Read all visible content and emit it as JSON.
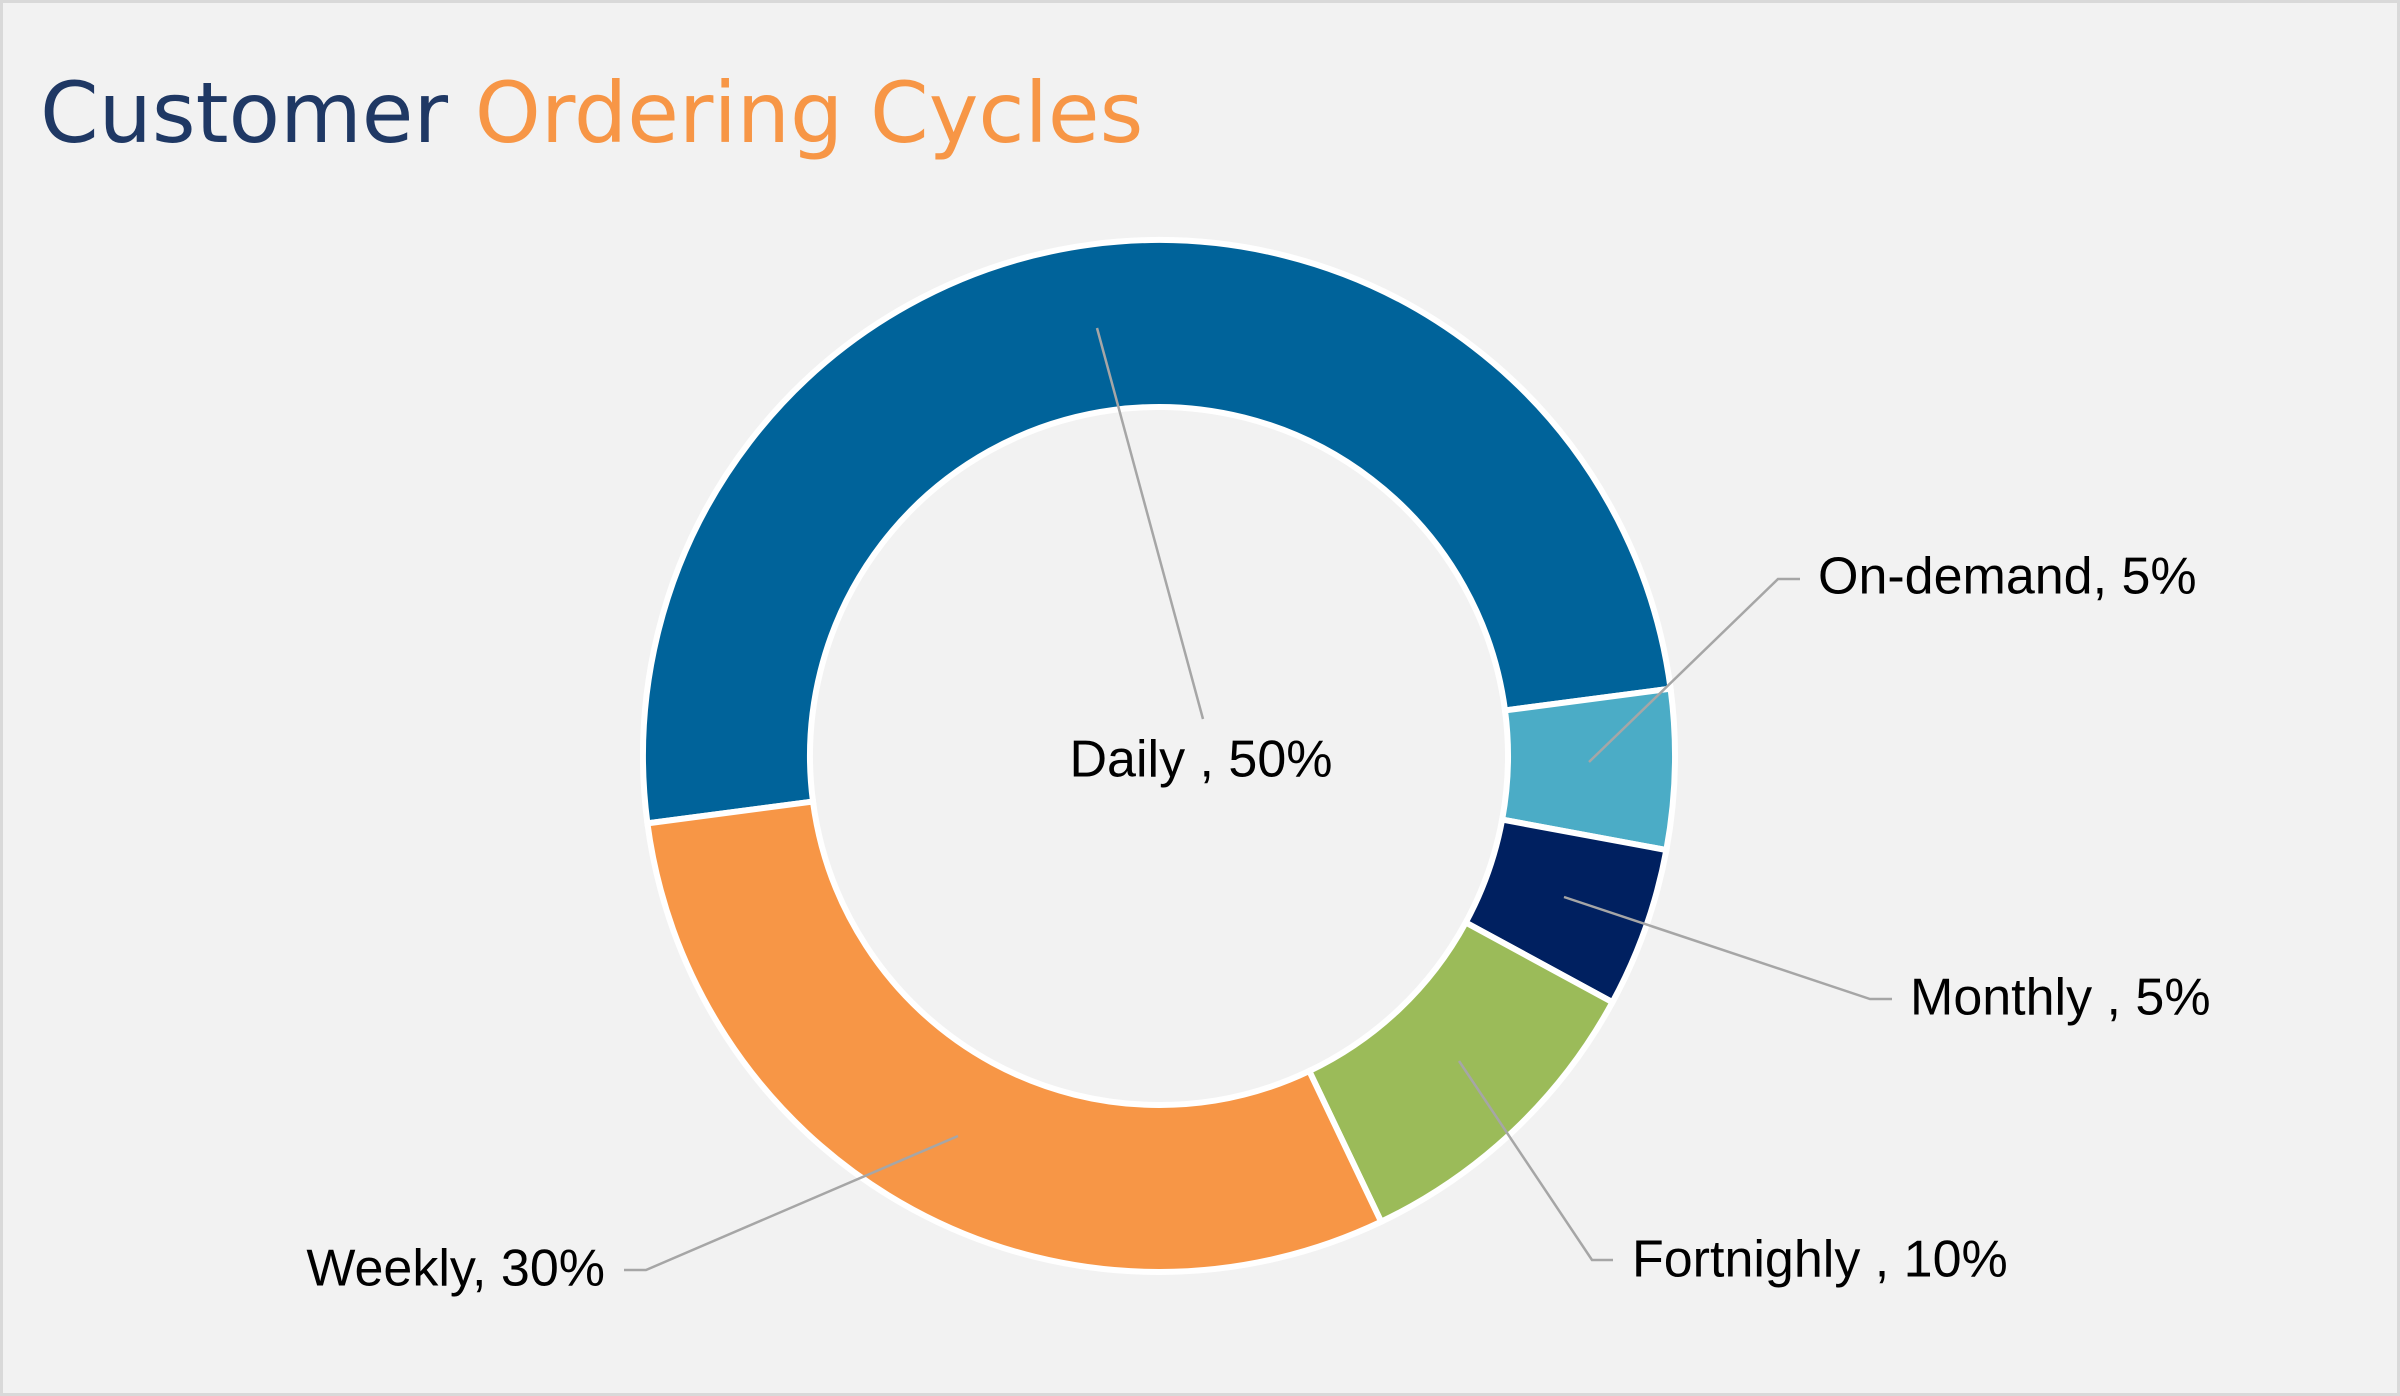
{
  "chart_data": {
    "type": "donut",
    "title_parts": [
      {
        "text": "Customer",
        "color": "#1f3864"
      },
      {
        "text": "Ordering Cycles",
        "color": "#f79646"
      }
    ],
    "values": [
      50,
      5,
      5,
      10,
      30
    ],
    "value_labels": [
      "Daily , 50%",
      "On-demand, 5%",
      "Monthly , 5%",
      "Fortnighly , 10%",
      "Weekly, 30%"
    ],
    "colors": [
      "#00639a",
      "#4bacc6",
      "#002060",
      "#9bbb59",
      "#f79646"
    ]
  }
}
